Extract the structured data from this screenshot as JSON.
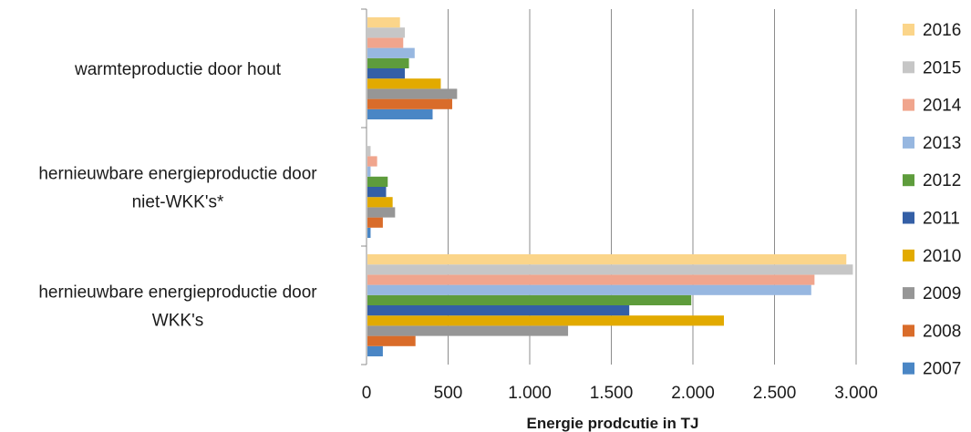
{
  "chart_data": {
    "type": "bar",
    "orientation": "horizontal",
    "categories": [
      "warmteproductie door hout",
      "hernieuwbare energieproductie door niet-WKK's*",
      "hernieuwbare energieproductie door WKK's"
    ],
    "category_lines": [
      [
        "warmteproductie door hout"
      ],
      [
        "hernieuwbare energieproductie door",
        "niet-WKK's*"
      ],
      [
        "hernieuwbare energieproductie door",
        "WKK's"
      ]
    ],
    "series": [
      {
        "name": "2007",
        "color": "#4a86c5",
        "values": [
          405,
          25,
          100
        ]
      },
      {
        "name": "2008",
        "color": "#d96c2a",
        "values": [
          525,
          100,
          300
        ]
      },
      {
        "name": "2009",
        "color": "#969696",
        "values": [
          555,
          175,
          1235
        ]
      },
      {
        "name": "2010",
        "color": "#e2aa00",
        "values": [
          455,
          160,
          2190
        ]
      },
      {
        "name": "2011",
        "color": "#345fa6",
        "values": [
          235,
          120,
          1610
        ]
      },
      {
        "name": "2012",
        "color": "#5e9c3c",
        "values": [
          260,
          130,
          1990
        ]
      },
      {
        "name": "2013",
        "color": "#97b7e0",
        "values": [
          295,
          25,
          2725
        ]
      },
      {
        "name": "2014",
        "color": "#f0a58d",
        "values": [
          225,
          65,
          2745
        ]
      },
      {
        "name": "2015",
        "color": "#c6c6c6",
        "values": [
          235,
          25,
          2980
        ]
      },
      {
        "name": "2016",
        "color": "#fbd58a",
        "values": [
          205,
          0,
          2940
        ]
      }
    ],
    "xlabel": "Energie prodcutie in TJ",
    "xlim": [
      0,
      3000
    ],
    "xticks": [
      0,
      500,
      1000,
      1500,
      2000,
      2500,
      3000
    ],
    "xtick_labels": [
      "0",
      "500",
      "1.000",
      "1.500",
      "2.000",
      "2.500",
      "3.000"
    ],
    "grid": true,
    "legend_position": "right",
    "legend_order": [
      "2016",
      "2015",
      "2014",
      "2013",
      "2012",
      "2011",
      "2010",
      "2009",
      "2008",
      "2007"
    ]
  }
}
